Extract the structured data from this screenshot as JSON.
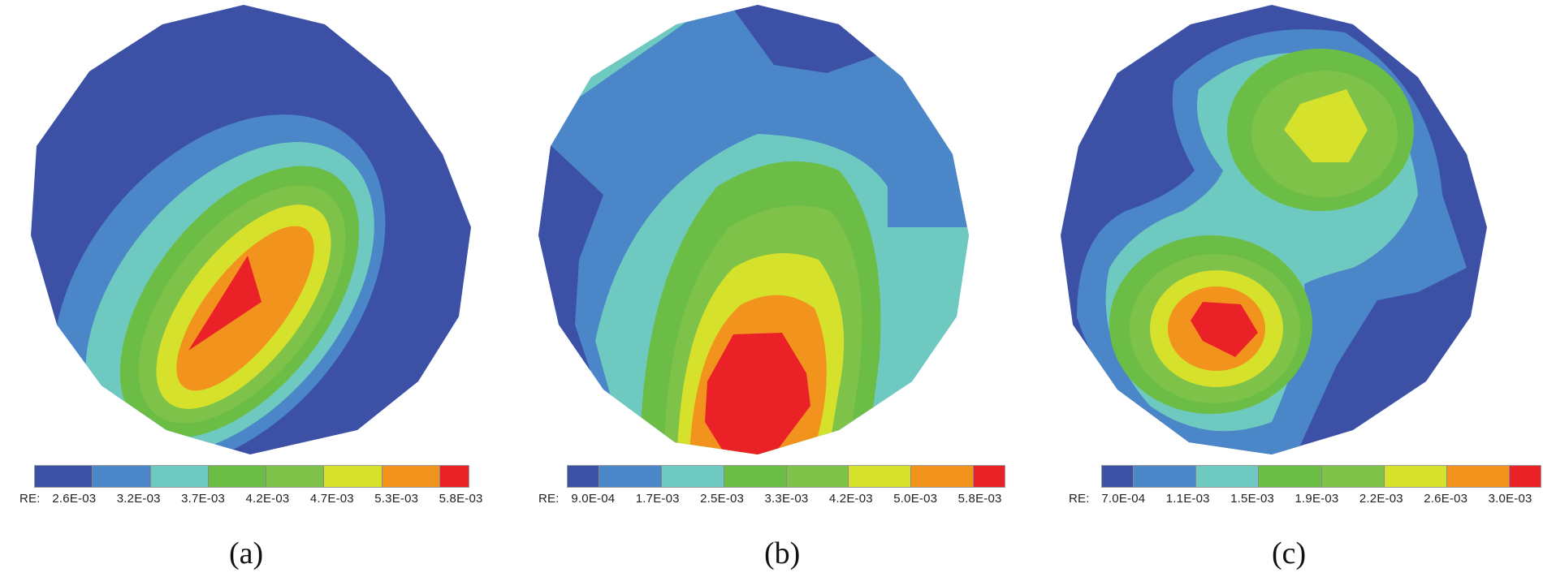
{
  "palette": [
    "#3c50a6",
    "#4a86c8",
    "#6ecac0",
    "#6bbd45",
    "#7fc24a",
    "#d6e12c",
    "#f2931e",
    "#ea2127"
  ],
  "chart_data": [
    {
      "type": "heatmap",
      "caption": "(a)",
      "legend_prefix": "RE:",
      "legend_ticks": [
        "2.6E-03",
        "3.2E-03",
        "3.7E-03",
        "4.2E-03",
        "4.7E-03",
        "5.3E-03",
        "5.8E-03"
      ],
      "value_range": [
        0.0026,
        0.0058
      ],
      "peak_region": "lower-center"
    },
    {
      "type": "heatmap",
      "caption": "(b)",
      "legend_prefix": "RE:",
      "legend_ticks": [
        "9.0E-04",
        "1.7E-03",
        "2.5E-03",
        "3.3E-03",
        "4.2E-03",
        "5.0E-03",
        "5.8E-03"
      ],
      "value_range": [
        0.0009,
        0.0058
      ],
      "peak_region": "bottom-center"
    },
    {
      "type": "heatmap",
      "caption": "(c)",
      "legend_prefix": "RE:",
      "legend_ticks": [
        "7.0E-04",
        "1.1E-03",
        "1.5E-03",
        "1.9E-03",
        "2.2E-03",
        "2.6E-03",
        "3.0E-03"
      ],
      "value_range": [
        0.0007,
        0.003
      ],
      "peak_region": "lower-left and upper-right"
    }
  ]
}
